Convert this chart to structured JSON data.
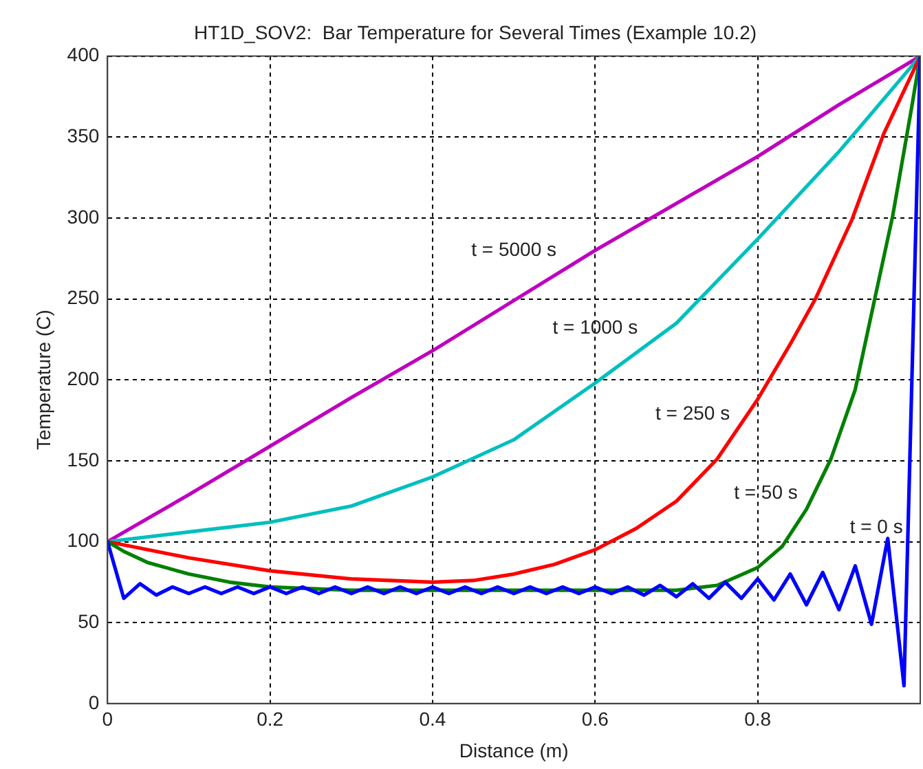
{
  "chart_data": {
    "type": "line",
    "title": "HT1D_SOV2:  Bar Temperature for Several Times (Example 10.2)",
    "xlabel": "Distance (m)",
    "ylabel": "Temperature (C)",
    "xlim": [
      0,
      1
    ],
    "xticks": [
      0,
      0.2,
      0.4,
      0.6,
      0.8
    ],
    "ylim": [
      0,
      400
    ],
    "yticks": [
      0,
      50,
      100,
      150,
      200,
      250,
      300,
      350,
      400
    ],
    "grid": true,
    "legend": false,
    "marker": "none",
    "line_style": "solid",
    "series": [
      {
        "color": "#0000ff",
        "x": [
          0,
          0.02,
          0.04,
          0.06,
          0.08,
          0.1,
          0.12,
          0.14,
          0.16,
          0.18,
          0.2,
          0.22,
          0.24,
          0.26,
          0.28,
          0.3,
          0.32,
          0.34,
          0.36,
          0.38,
          0.4,
          0.42,
          0.44,
          0.46,
          0.48,
          0.5,
          0.52,
          0.54,
          0.56,
          0.58,
          0.6,
          0.62,
          0.64,
          0.66,
          0.68,
          0.7,
          0.72,
          0.74,
          0.76,
          0.78,
          0.8,
          0.82,
          0.84,
          0.86,
          0.88,
          0.9,
          0.92,
          0.94,
          0.96,
          0.98,
          1
        ],
        "values": [
          100,
          65,
          74,
          67,
          72,
          68,
          72,
          68,
          72,
          68,
          72,
          68,
          72,
          68,
          72,
          68,
          72,
          68,
          72,
          68,
          72,
          68,
          72,
          68,
          72,
          68,
          72,
          68,
          72,
          68,
          72,
          68,
          72,
          67,
          73,
          66,
          74,
          65,
          75,
          65,
          77,
          64,
          80,
          61,
          81,
          58,
          85,
          49,
          102,
          11,
          400
        ]
      },
      {
        "color": "#008000",
        "x": [
          0,
          0.02,
          0.05,
          0.1,
          0.15,
          0.2,
          0.3,
          0.5,
          0.7,
          0.75,
          0.8,
          0.83,
          0.86,
          0.89,
          0.92,
          0.944,
          0.966,
          0.989,
          1
        ],
        "values": [
          100,
          94,
          87,
          80,
          75,
          72,
          70,
          70,
          70,
          73,
          84,
          97,
          120,
          151,
          194,
          250,
          301,
          367,
          400
        ]
      },
      {
        "color": "#ff0000",
        "x": [
          0,
          0.1,
          0.2,
          0.3,
          0.4,
          0.45,
          0.5,
          0.55,
          0.6,
          0.65,
          0.7,
          0.75,
          0.8,
          0.84,
          0.871,
          0.916,
          0.955,
          1
        ],
        "values": [
          100,
          90,
          82,
          77,
          75,
          76,
          80,
          86,
          95,
          108,
          125,
          151,
          188,
          222,
          250,
          299,
          352,
          400
        ]
      },
      {
        "color": "#00bfbf",
        "x": [
          0,
          0.1,
          0.2,
          0.3,
          0.4,
          0.5,
          0.6,
          0.7,
          0.8,
          0.9,
          1
        ],
        "values": [
          100,
          106,
          112,
          122,
          140,
          163,
          198,
          235,
          287,
          341,
          400
        ]
      },
      {
        "color": "#bf00bf",
        "x": [
          0,
          0.1,
          0.2,
          0.3,
          0.4,
          0.5,
          0.6,
          0.7,
          0.8,
          0.9,
          1
        ],
        "values": [
          100,
          129,
          159,
          189,
          218,
          249,
          280,
          309,
          338,
          370,
          400
        ]
      }
    ],
    "annotations": [
      "t = 5000 s",
      "t = 1000 s",
      "t = 250 s",
      "t = 50 s",
      "t = 0 s"
    ]
  }
}
